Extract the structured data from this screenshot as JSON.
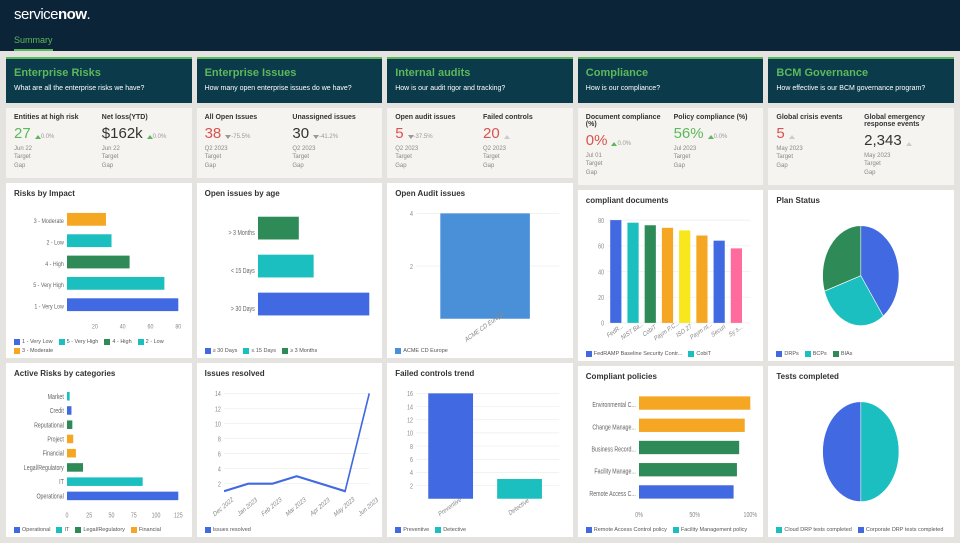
{
  "app": {
    "logo_prefix": "service",
    "logo_bold": "now",
    "tab": "Summary"
  },
  "colors": {
    "green": "#5cb85c",
    "teal": "#1cbfbf",
    "blue": "#4169e1",
    "darkgreen": "#2e8b57",
    "orange": "#f5a623",
    "yellow": "#f8e71c",
    "pink": "#ff6b9d",
    "red": "#d9534f",
    "grey": "#bbbbbb",
    "darkblue": "#0b3a4a",
    "accent": "#5cb85c"
  },
  "panels": [
    {
      "title": "Enterprise Risks",
      "subtitle": "What are all the enterprise risks we have?",
      "metrics": [
        {
          "label": "Entities at high risk",
          "value": "27",
          "color": "#5cb85c",
          "delta": "0.0%",
          "delta_dir": "up",
          "delta_color": "#5cb85c",
          "meta": [
            "Jun 22",
            "Target",
            "Gap"
          ]
        },
        {
          "label": "Net loss(YTD)",
          "value": "$162k",
          "color": "#333",
          "delta": "0.0%",
          "delta_dir": "up",
          "delta_color": "#5cb85c",
          "meta": [
            "Jun 22",
            "Target",
            "Gap"
          ]
        }
      ]
    },
    {
      "title": "Enterprise Issues",
      "subtitle": "How many open enterprise issues do we have?",
      "metrics": [
        {
          "label": "All Open Issues",
          "value": "38",
          "color": "#d9534f",
          "delta": "-75.5%",
          "delta_dir": "down",
          "delta_color": "#999",
          "meta": [
            "Q2 2023",
            "Target",
            "Gap"
          ]
        },
        {
          "label": "Unassigned issues",
          "value": "30",
          "color": "#333",
          "delta": "-41.2%",
          "delta_dir": "down",
          "delta_color": "#999",
          "meta": [
            "Q2 2023",
            "Target",
            "Gap"
          ]
        }
      ]
    },
    {
      "title": "Internal audits",
      "subtitle": "How is our audit rigor and tracking?",
      "metrics": [
        {
          "label": "Open audit issues",
          "value": "5",
          "color": "#d9534f",
          "delta": "-37.5%",
          "delta_dir": "down",
          "delta_color": "#999",
          "meta": [
            "Q2 2023",
            "Target",
            "Gap"
          ]
        },
        {
          "label": "Failed controls",
          "value": "20",
          "color": "#d9534f",
          "delta": "",
          "delta_dir": "up",
          "delta_color": "#ccc",
          "meta": [
            "Q2 2023",
            "Target",
            "Gap"
          ]
        }
      ]
    },
    {
      "title": "Compliance",
      "subtitle": "How is our compliance?",
      "metrics": [
        {
          "label": "Document compliance (%)",
          "value": "0%",
          "color": "#d9534f",
          "delta": "0.0%",
          "delta_dir": "up",
          "delta_color": "#5cb85c",
          "meta": [
            "Jul 01",
            "Target",
            "Gap"
          ]
        },
        {
          "label": "Policy compliance (%)",
          "value": "56%",
          "color": "#5cb85c",
          "delta": "0.0%",
          "delta_dir": "up",
          "delta_color": "#5cb85c",
          "meta": [
            "Jul 2023",
            "Target",
            "Gap"
          ]
        }
      ]
    },
    {
      "title": "BCM Governance",
      "subtitle": "How effective is our BCM governance program?",
      "metrics": [
        {
          "label": "Global crisis events",
          "value": "5",
          "color": "#d9534f",
          "delta": "",
          "delta_dir": "up",
          "delta_color": "#ccc",
          "meta": [
            "May 2023",
            "Target",
            "Gap"
          ]
        },
        {
          "label": "Global emergency response events",
          "value": "2,343",
          "color": "#333",
          "delta": "",
          "delta_dir": "up",
          "delta_color": "#ccc",
          "meta": [
            "May 2023",
            "Target",
            "Gap"
          ]
        }
      ]
    }
  ],
  "charts": {
    "risks_by_impact": {
      "title": "Risks by Impact",
      "type": "bar-h",
      "categories": [
        "3 - Moderate",
        "2 - Low",
        "4 - High",
        "5 - Very High",
        "1 - Very Low"
      ],
      "values": [
        28,
        32,
        45,
        70,
        80
      ],
      "colors": [
        "#f5a623",
        "#1cbfbf",
        "#2e8b57",
        "#1cbfbf",
        "#4169e1"
      ],
      "xmax": 80,
      "xticks": [
        20,
        40,
        60,
        80
      ],
      "legend": [
        [
          "1 - Very Low",
          "#4169e1"
        ],
        [
          "5 - Very High",
          "#1cbfbf"
        ],
        [
          "4 - High",
          "#2e8b57"
        ],
        [
          "2 - Low",
          "#1cbfbf"
        ],
        [
          "3 - Moderate",
          "#f5a623"
        ]
      ]
    },
    "active_risks_by_cat": {
      "title": "Active Risks by categories",
      "type": "bar-h",
      "categories": [
        "Market",
        "Credit",
        "Reputational",
        "Project",
        "Financial",
        "Legal/Regulatory",
        "IT",
        "Operational"
      ],
      "values": [
        3,
        5,
        6,
        7,
        10,
        18,
        85,
        125
      ],
      "colors": [
        "#1cbfbf",
        "#4169e1",
        "#2e8b57",
        "#f5a623",
        "#f5a623",
        "#2e8b57",
        "#1cbfbf",
        "#4169e1"
      ],
      "xmax": 125,
      "xticks": [
        0,
        25,
        50,
        75,
        100,
        125
      ],
      "legend": [
        [
          "Operational",
          "#4169e1"
        ],
        [
          "IT",
          "#1cbfbf"
        ],
        [
          "Legal/Regulatory",
          "#2e8b57"
        ],
        [
          "Financial",
          "#f5a623"
        ]
      ]
    },
    "open_issues_age": {
      "title": "Open issues by age",
      "type": "bar-h",
      "categories": [
        "> 3 Months",
        "< 15 Days",
        "> 30 Days"
      ],
      "values": [
        22,
        30,
        60
      ],
      "colors": [
        "#2e8b57",
        "#1cbfbf",
        "#4169e1"
      ],
      "xmax": 60,
      "legend": [
        [
          "≥ 30 Days",
          "#4169e1"
        ],
        [
          "≤ 15 Days",
          "#1cbfbf"
        ],
        [
          "≥ 3 Months",
          "#2e8b57"
        ]
      ]
    },
    "issues_resolved": {
      "title": "Issues resolved",
      "type": "line",
      "x": [
        "Dec 2022",
        "Jan 2023",
        "Feb 2023",
        "Mar 2023",
        "Apr 2023",
        "May 2023",
        "Jun 2023"
      ],
      "y": [
        1,
        2,
        2,
        3,
        2,
        1,
        14
      ],
      "ymax": 14,
      "yticks": [
        2,
        4,
        6,
        8,
        10,
        12,
        14
      ],
      "color": "#4169e1",
      "legend": [
        [
          "Issues resolved",
          "#4169e1"
        ]
      ]
    },
    "open_audit_issues": {
      "title": "Open Audit issues",
      "type": "bar-v",
      "categories": [
        "ACME CD Europe"
      ],
      "values": [
        4
      ],
      "colors": [
        "#4a90d9"
      ],
      "ymax": 4,
      "yticks": [
        2,
        4
      ],
      "legend": [
        [
          "ACME CD Europe",
          "#4a90d9"
        ]
      ]
    },
    "failed_controls": {
      "title": "Failed controls trend",
      "type": "bar-v",
      "categories": [
        "Preventive",
        "Detective"
      ],
      "values": [
        16,
        3
      ],
      "colors": [
        "#4169e1",
        "#1cbfbf"
      ],
      "ymax": 16,
      "yticks": [
        2,
        4,
        6,
        8,
        10,
        12,
        14,
        16
      ],
      "legend": [
        [
          "Preventive",
          "#4169e1"
        ],
        [
          "Detective",
          "#1cbfbf"
        ]
      ]
    },
    "compliant_docs": {
      "title": "compliant documents",
      "type": "bar-v",
      "categories": [
        "FedR...",
        "NIST Ba...",
        "CobiT",
        "Paym P.C...",
        "ISO 27",
        "Paym nt...",
        "Securi",
        "Sy s..."
      ],
      "values": [
        80,
        78,
        76,
        74,
        72,
        68,
        64,
        58
      ],
      "colors": [
        "#4169e1",
        "#1cbfbf",
        "#2e8b57",
        "#f5a623",
        "#f8e71c",
        "#f5a623",
        "#4169e1",
        "#ff6b9d"
      ],
      "ymax": 80,
      "yticks": [
        0,
        20,
        40,
        60,
        80
      ],
      "legend": [
        [
          "FedRAMP Baseline Security Contr...",
          "#4169e1"
        ],
        [
          "CobiT",
          "#1cbfbf"
        ]
      ]
    },
    "compliant_policies": {
      "title": "Compliant policies",
      "type": "bar-h",
      "categories": [
        "Environmental C...",
        "Change Manage...",
        "Business Record...",
        "Facility Manage...",
        "Remote Access C..."
      ],
      "values": [
        100,
        95,
        90,
        88,
        85
      ],
      "colors": [
        "#f5a623",
        "#f5a623",
        "#2e8b57",
        "#2e8b57",
        "#4169e1"
      ],
      "xmax": 100,
      "xticks": [
        0,
        50,
        100
      ],
      "xtick_suffix": "%",
      "legend": [
        [
          "Remote Access Control policy",
          "#4169e1"
        ],
        [
          "Facility Management policy",
          "#1cbfbf"
        ]
      ]
    },
    "plan_status": {
      "title": "Plan Status",
      "type": "pie",
      "slices": [
        [
          "DRPs",
          40,
          "#4169e1"
        ],
        [
          "BCPs",
          30,
          "#1cbfbf"
        ],
        [
          "BIAs",
          30,
          "#2e8b57"
        ]
      ],
      "legend": [
        [
          "DRPs",
          "#4169e1"
        ],
        [
          "BCPs",
          "#1cbfbf"
        ],
        [
          "BIAs",
          "#2e8b57"
        ]
      ]
    },
    "tests_completed": {
      "title": "Tests completed",
      "type": "pie",
      "slices": [
        [
          "Cloud",
          50,
          "#1cbfbf"
        ],
        [
          "Corporate",
          50,
          "#4169e1"
        ]
      ],
      "legend": [
        [
          "Cloud DRP tests completed",
          "#1cbfbf"
        ],
        [
          "Corporate DRP tests completed",
          "#4169e1"
        ]
      ]
    }
  }
}
